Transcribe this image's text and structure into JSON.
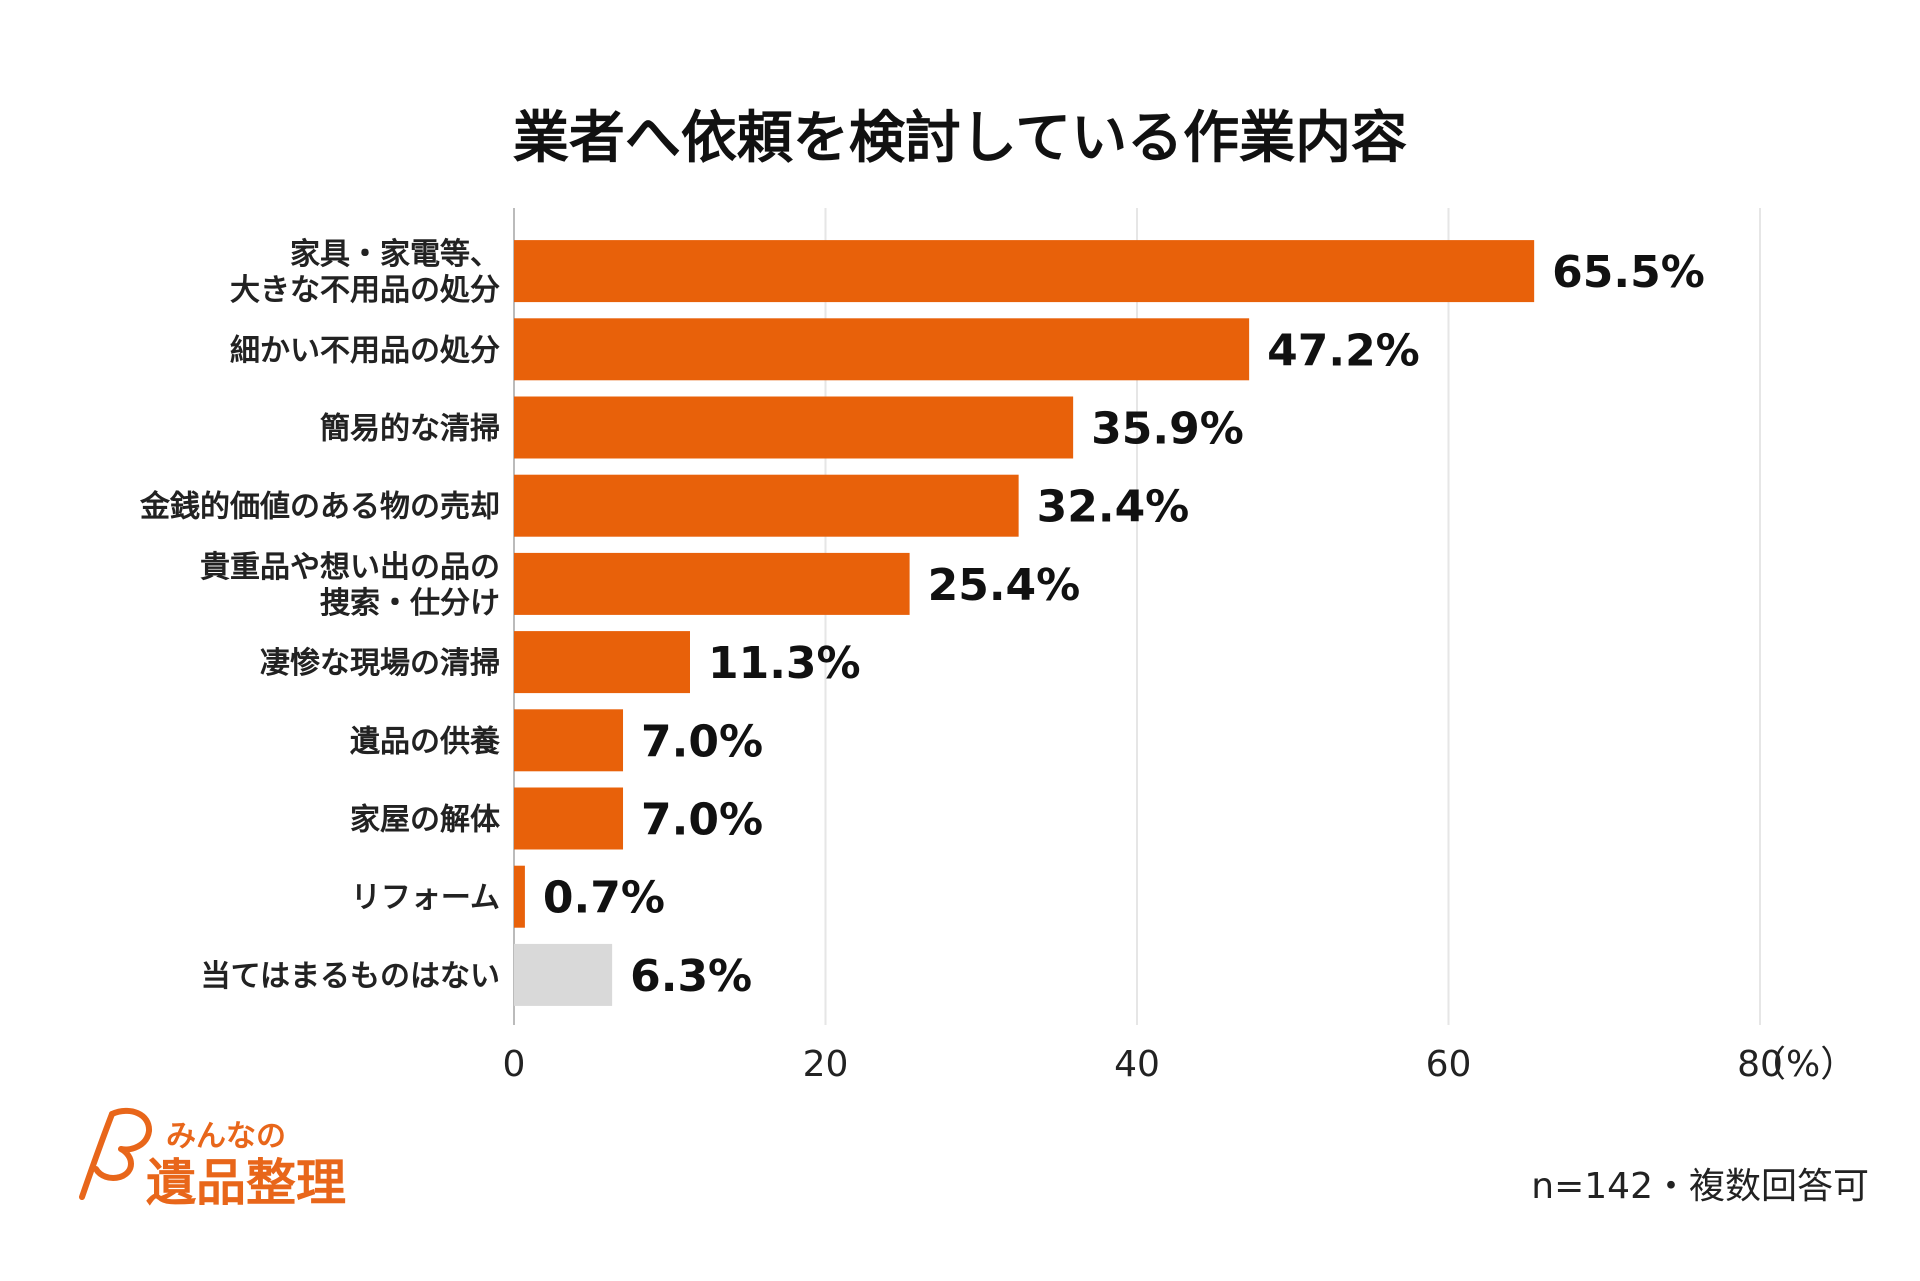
{
  "chart_data": {
    "type": "bar",
    "orientation": "horizontal",
    "title": "業者へ依頼を検討している作業内容",
    "categories": [
      [
        "家具・家電等、",
        "大きな不用品の処分"
      ],
      [
        "細かい不用品の処分"
      ],
      [
        "簡易的な清掃"
      ],
      [
        "金銭的価値のある物の売却"
      ],
      [
        "貴重品や想い出の品の",
        "捜索・仕分け"
      ],
      [
        "凄惨な現場の清掃"
      ],
      [
        "遺品の供養"
      ],
      [
        "家屋の解体"
      ],
      [
        "リフォーム"
      ],
      [
        "当てはまるものはない"
      ]
    ],
    "values": [
      65.5,
      47.2,
      35.9,
      32.4,
      25.4,
      11.3,
      7.0,
      7.0,
      0.7,
      6.3
    ],
    "value_labels": [
      "65.5%",
      "47.2%",
      "35.9%",
      "32.4%",
      "25.4%",
      "11.3%",
      "7.0%",
      "7.0%",
      "0.7%",
      "6.3%"
    ],
    "bar_colors": [
      "#e8610a",
      "#e8610a",
      "#e8610a",
      "#e8610a",
      "#e8610a",
      "#e8610a",
      "#e8610a",
      "#e8610a",
      "#e8610a",
      "#d9d9d9"
    ],
    "xlim": [
      0,
      80
    ],
    "xticks": [
      0,
      20,
      40,
      60,
      80
    ],
    "xtick_labels": [
      "0",
      "20",
      "40",
      "60",
      "80"
    ],
    "unit_label": "（%）",
    "grid": true
  },
  "note": "n=142・複数回答可",
  "logo": {
    "line1": "みんなの",
    "line2": "遺品整理"
  },
  "colors": {
    "bar": "#e8610a",
    "bar_none": "#d9d9d9",
    "grid": "#e6e6e6",
    "axis": "#bbbbbb",
    "logo": "#e8661a"
  }
}
